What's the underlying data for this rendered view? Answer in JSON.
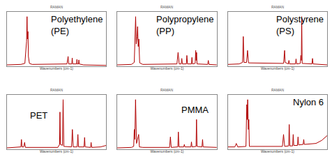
{
  "chart_data": [
    {
      "type": "line",
      "title": "RAMAN",
      "xlabel": "Wavenumbers (cm-1)",
      "annotations": [
        {
          "text": "Polyethylene (PE)"
        }
      ],
      "x": [
        3600,
        3100,
        2960,
        2930,
        2900,
        2883,
        2870,
        2850,
        2835,
        2800,
        2700,
        1480,
        1440,
        1420,
        1310,
        1295,
        1280,
        1140,
        1130,
        1120,
        1075,
        1063,
        1050,
        900,
        400,
        100
      ],
      "values": [
        0.03,
        0.04,
        0.06,
        0.25,
        0.5,
        1.0,
        0.55,
        0.7,
        0.2,
        0.06,
        0.04,
        0.05,
        0.2,
        0.05,
        0.05,
        0.17,
        0.05,
        0.05,
        0.14,
        0.05,
        0.05,
        0.13,
        0.05,
        0.03,
        0.03,
        0.02
      ],
      "color": "#b00000",
      "xlim": [
        3600,
        100
      ],
      "ylim": [
        0,
        1.1
      ],
      "tick_labels": false,
      "grid": false
    },
    {
      "type": "line",
      "title": "RAMAN",
      "xlabel": "Wavenumbers (cm-1)",
      "annotations": [
        {
          "text": "Polypropylene (PP)"
        }
      ],
      "x": [
        3600,
        3100,
        3000,
        2952,
        2930,
        2900,
        2883,
        2860,
        2840,
        2810,
        2700,
        1500,
        1460,
        1420,
        1350,
        1330,
        1310,
        1170,
        1152,
        1130,
        990,
        973,
        955,
        860,
        841,
        825,
        810,
        795,
        420,
        398,
        375,
        100
      ],
      "values": [
        0.03,
        0.04,
        0.08,
        1.0,
        0.45,
        0.6,
        0.8,
        0.4,
        0.55,
        0.07,
        0.04,
        0.05,
        0.28,
        0.05,
        0.05,
        0.16,
        0.05,
        0.05,
        0.22,
        0.05,
        0.05,
        0.18,
        0.05,
        0.06,
        0.32,
        0.12,
        0.28,
        0.05,
        0.04,
        0.12,
        0.04,
        0.03
      ],
      "color": "#b00000",
      "xlim": [
        3600,
        100
      ],
      "ylim": [
        0,
        1.1
      ],
      "tick_labels": false,
      "grid": false
    },
    {
      "type": "line",
      "title": "RAMAN",
      "xlabel": "Wavenumbers (cm-1)",
      "annotations": [
        {
          "text": "Polystyrene (PS)"
        }
      ],
      "x": [
        3600,
        3200,
        3080,
        3054,
        3030,
        2940,
        2905,
        2870,
        1640,
        1602,
        1585,
        1470,
        1450,
        1430,
        1220,
        1200,
        1180,
        1050,
        1031,
        1015,
        1001,
        985,
        640,
        621,
        600,
        300,
        100
      ],
      "values": [
        0.04,
        0.05,
        0.08,
        0.6,
        0.08,
        0.08,
        0.32,
        0.07,
        0.06,
        0.32,
        0.08,
        0.05,
        0.12,
        0.05,
        0.05,
        0.15,
        0.05,
        0.06,
        0.22,
        0.12,
        1.0,
        0.06,
        0.05,
        0.16,
        0.05,
        0.04,
        0.03
      ],
      "color": "#b00000",
      "xlim": [
        3600,
        100
      ],
      "ylim": [
        0,
        1.1
      ],
      "tick_labels": false,
      "grid": false
    },
    {
      "type": "line",
      "title": "RAMAN",
      "xlabel": "Wavenumbers (cm-1)",
      "annotations": [
        {
          "text": "PET"
        }
      ],
      "x": [
        3600,
        3150,
        3100,
        3080,
        3060,
        3000,
        2968,
        2940,
        1800,
        1740,
        1726,
        1710,
        1640,
        1615,
        1590,
        1320,
        1290,
        1260,
        1120,
        1096,
        1075,
        880,
        860,
        840,
        650,
        632,
        610,
        300,
        100
      ],
      "values": [
        0.03,
        0.04,
        0.05,
        0.2,
        0.05,
        0.05,
        0.14,
        0.04,
        0.04,
        0.1,
        0.75,
        0.1,
        0.08,
        1.0,
        0.06,
        0.05,
        0.4,
        0.05,
        0.05,
        0.3,
        0.05,
        0.05,
        0.24,
        0.05,
        0.04,
        0.14,
        0.04,
        0.05,
        0.08
      ],
      "color": "#b00000",
      "xlim": [
        3600,
        100
      ],
      "ylim": [
        0,
        1.1
      ],
      "tick_labels": false,
      "grid": false
    },
    {
      "type": "line",
      "title": "RAMAN",
      "xlabel": "Wavenumbers (cm-1)",
      "annotations": [
        {
          "text": "PMMA"
        }
      ],
      "x": [
        3600,
        3100,
        3020,
        3000,
        2980,
        2955,
        2920,
        2845,
        2820,
        2700,
        1760,
        1730,
        1700,
        1470,
        1450,
        1430,
        1260,
        1240,
        1220,
        1010,
        990,
        970,
        830,
        812,
        795,
        620,
        600,
        580,
        100
      ],
      "values": [
        0.03,
        0.04,
        0.06,
        0.4,
        0.2,
        1.0,
        0.12,
        0.3,
        0.05,
        0.04,
        0.04,
        0.25,
        0.04,
        0.05,
        0.35,
        0.05,
        0.05,
        0.1,
        0.05,
        0.05,
        0.15,
        0.05,
        0.06,
        0.6,
        0.06,
        0.05,
        0.2,
        0.05,
        0.04
      ],
      "color": "#b00000",
      "xlim": [
        3600,
        100
      ],
      "ylim": [
        0,
        1.1
      ],
      "tick_labels": false,
      "grid": false
    },
    {
      "type": "line",
      "title": "RAMAN",
      "xlabel": "Wavenumbers (cm-1)",
      "annotations": [
        {
          "text": "Nylon 6"
        }
      ],
      "x": [
        3600,
        3350,
        3300,
        3250,
        2960,
        2932,
        2915,
        2900,
        2875,
        2860,
        2840,
        1680,
        1640,
        1600,
        1460,
        1440,
        1420,
        1320,
        1300,
        1280,
        1150,
        1130,
        1110,
        950,
        930,
        910,
        500,
        300,
        100
      ],
      "values": [
        0.05,
        0.05,
        0.12,
        0.05,
        0.06,
        0.9,
        0.6,
        1.0,
        0.4,
        0.6,
        0.06,
        0.06,
        0.3,
        0.06,
        0.07,
        0.5,
        0.07,
        0.07,
        0.3,
        0.08,
        0.08,
        0.25,
        0.09,
        0.1,
        0.2,
        0.1,
        0.12,
        0.18,
        0.28
      ],
      "color": "#b00000",
      "xlim": [
        3600,
        100
      ],
      "ylim": [
        0,
        1.1
      ],
      "tick_labels": false,
      "grid": false
    }
  ]
}
